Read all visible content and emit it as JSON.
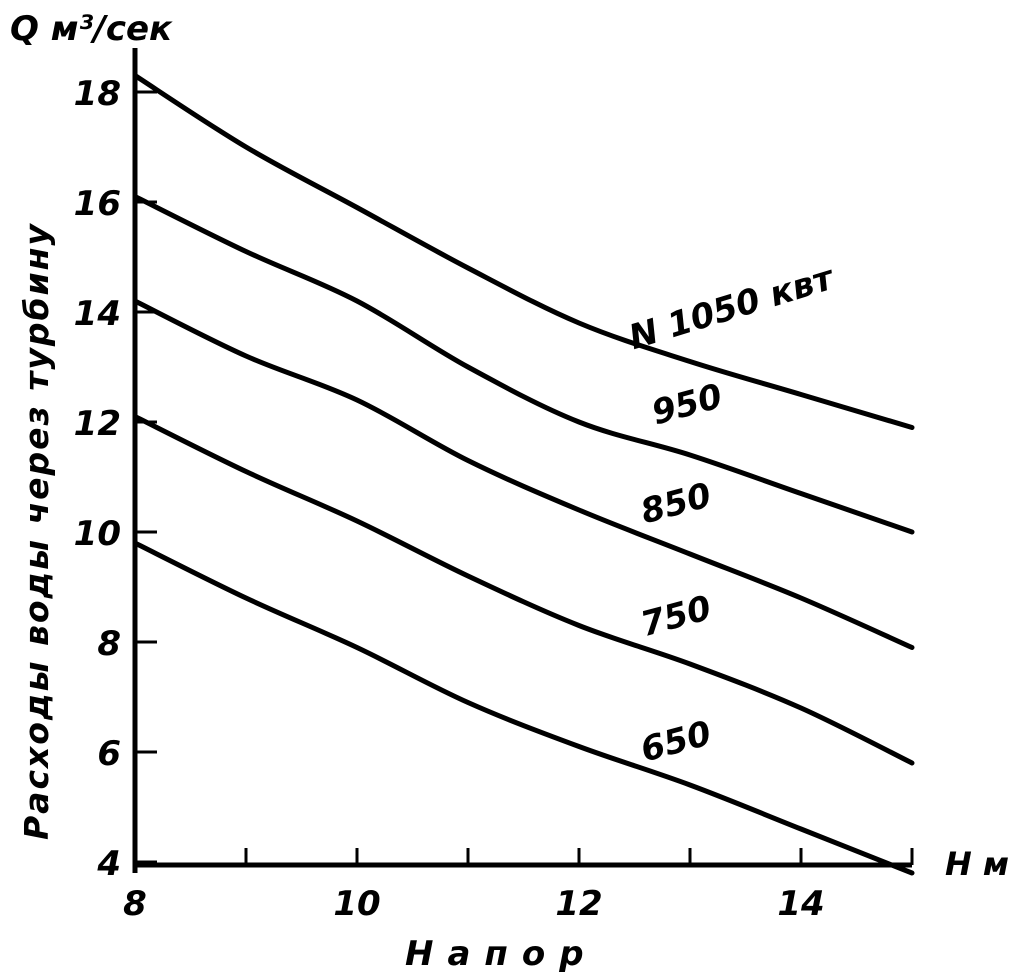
{
  "chart_data": {
    "type": "line",
    "title": "",
    "xlabel": "Напор",
    "xunit": "H м",
    "ylabel": "Расходы воды через турбину",
    "yunit": "Q м³/сек",
    "xlim": [
      8,
      15
    ],
    "ylim": [
      4,
      18.5
    ],
    "xticks": [
      8,
      9,
      10,
      11,
      12,
      13,
      14,
      15
    ],
    "xtick_labels": [
      "8",
      "10",
      "12",
      "14"
    ],
    "xtick_label_values": [
      8,
      10,
      12,
      14
    ],
    "yticks": [
      4,
      6,
      8,
      10,
      12,
      14,
      16,
      18
    ],
    "ytick_labels": [
      "4",
      "6",
      "8",
      "10",
      "12",
      "14",
      "16",
      "18"
    ],
    "grid": false,
    "x": [
      8,
      9,
      10,
      11,
      12,
      13,
      14,
      15
    ],
    "series": [
      {
        "name": "N 1050 квт",
        "label": "N 1050 квт",
        "values": [
          18.3,
          17.0,
          15.9,
          14.8,
          13.8,
          13.1,
          12.5,
          11.9
        ]
      },
      {
        "name": "950",
        "label": "950",
        "values": [
          16.1,
          15.1,
          14.2,
          13.0,
          12.0,
          11.4,
          10.7,
          10.0
        ]
      },
      {
        "name": "850",
        "label": "850",
        "values": [
          14.2,
          13.2,
          12.4,
          11.3,
          10.4,
          9.6,
          8.8,
          7.9
        ]
      },
      {
        "name": "750",
        "label": "750",
        "values": [
          12.1,
          11.1,
          10.2,
          9.2,
          8.3,
          7.6,
          6.8,
          5.8
        ]
      },
      {
        "name": "650",
        "label": "650",
        "values": [
          9.8,
          8.8,
          7.9,
          6.9,
          6.1,
          5.4,
          4.6,
          3.8
        ]
      }
    ],
    "line_color": "#000000",
    "background": "#ffffff"
  }
}
